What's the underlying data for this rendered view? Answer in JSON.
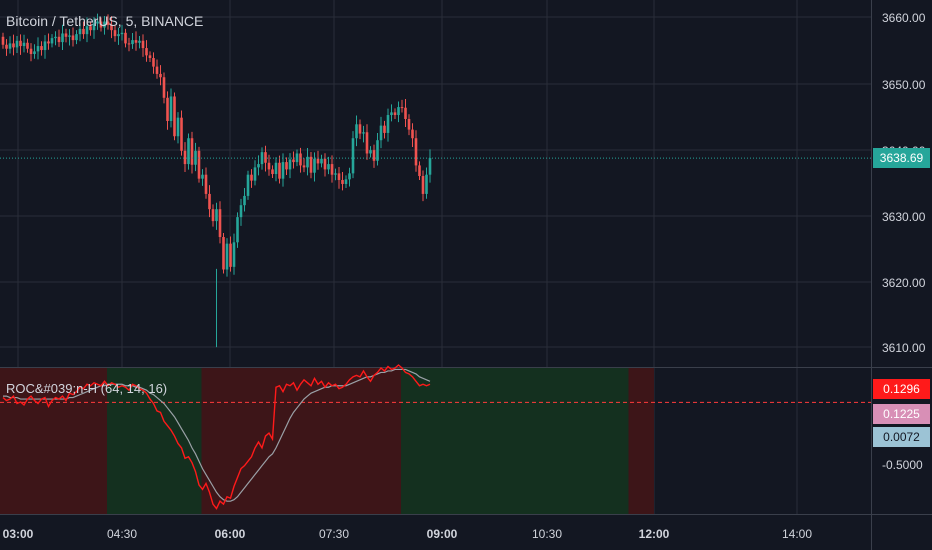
{
  "header": {
    "symbol_title": "Bitcoin / TetherUS, 5, BINANCE"
  },
  "indicator": {
    "title": "ROC&#039;n-H (64, 14, 16)"
  },
  "price_axis": {
    "labels": [
      "3660.00",
      "3650.00",
      "3640.00",
      "3630.00",
      "3620.00",
      "3610.00"
    ],
    "last_price": "3638.69",
    "last_price_color": "#26a69a"
  },
  "indicator_axis": {
    "badges": [
      {
        "text": "0.1296",
        "color": "#ff1a1a"
      },
      {
        "text": "0.1225",
        "color": "#d88fb6"
      },
      {
        "text": "0.0072",
        "color": "#9cc3d5"
      }
    ],
    "labels": [
      "-0.5000"
    ]
  },
  "time_axis": {
    "labels": [
      "03:00",
      "04:30",
      "06:00",
      "07:30",
      "09:00",
      "10:30",
      "12:00",
      "14:00"
    ],
    "bold": [
      true,
      false,
      true,
      false,
      true,
      false,
      true,
      false
    ]
  },
  "colors": {
    "background": "#131722",
    "up": "#26a69a",
    "down": "#ef5350",
    "grid": "#2a2e39"
  },
  "chart_data": {
    "type": "candlestick",
    "symbol": "Bitcoin / TetherUS",
    "interval": "5",
    "exchange": "BINANCE",
    "ylim": [
      3609,
      3662
    ],
    "close": [
      3655.8,
      3655.2,
      3656.0,
      3655.4,
      3656.4,
      3655.6,
      3656.1,
      3655.2,
      3654.4,
      3654.8,
      3655.6,
      3655.0,
      3656.3,
      3656.0,
      3656.8,
      3657.0,
      3656.2,
      3657.5,
      3657.0,
      3657.2,
      3656.5,
      3657.4,
      3658.2,
      3657.4,
      3658.6,
      3658.0,
      3659.0,
      3659.3,
      3658.4,
      3659.3,
      3658.8,
      3658.0,
      3657.1,
      3657.4,
      3657.6,
      3656.0,
      3655.9,
      3656.5,
      3656.1,
      3656.4,
      3655.3,
      3654.2,
      3653.8,
      3652.5,
      3651.4,
      3650.9,
      3647.8,
      3644.3,
      3648.0,
      3642.0,
      3644.8,
      3639.8,
      3637.8,
      3641.7,
      3637.7,
      3639.8,
      3635.6,
      3636.2,
      3633.3,
      3631.0,
      3629.2,
      3631.0,
      3626.8,
      3621.9,
      3625.8,
      3622.3,
      3626.0,
      3629.8,
      3631.6,
      3633.0,
      3636.2,
      3635.3,
      3637.3,
      3637.8,
      3639.6,
      3638.0,
      3637.0,
      3636.3,
      3638.0,
      3635.6,
      3638.1,
      3637.0,
      3638.5,
      3638.1,
      3639.4,
      3637.6,
      3637.3,
      3638.9,
      3636.5,
      3638.6,
      3637.9,
      3638.6,
      3637.0,
      3637.8,
      3636.2,
      3636.4,
      3635.4,
      3634.8,
      3635.5,
      3636.4,
      3641.7,
      3643.8,
      3642.4,
      3642.6,
      3639.4,
      3639.9,
      3638.3,
      3641.4,
      3643.6,
      3642.5,
      3645.2,
      3645.6,
      3645.2,
      3646.4,
      3646.3,
      3644.6,
      3643.0,
      3641.7,
      3637.6,
      3636.0,
      3633.3,
      3636.2,
      3638.7
    ],
    "indicator_ylim": [
      -0.75,
      0.3
    ],
    "roc": [
      0.04,
      0.02,
      0.03,
      0.05,
      0.0,
      0.01,
      -0.01,
      0.03,
      0.05,
      0.02,
      0.0,
      0.03,
      0.04,
      -0.02,
      0.02,
      0.04,
      0.03,
      0.05,
      0.02,
      0.07,
      0.06,
      0.08,
      0.11,
      0.1,
      0.13,
      0.12,
      0.14,
      0.13,
      0.12,
      0.15,
      0.12,
      0.14,
      0.13,
      0.11,
      0.12,
      0.11,
      0.09,
      0.13,
      0.12,
      0.1,
      0.09,
      0.07,
      0.03,
      0.0,
      -0.05,
      -0.06,
      -0.12,
      -0.15,
      -0.18,
      -0.22,
      -0.27,
      -0.3,
      -0.37,
      -0.36,
      -0.4,
      -0.46,
      -0.55,
      -0.58,
      -0.54,
      -0.6,
      -0.68,
      -0.71,
      -0.66,
      -0.68,
      -0.63,
      -0.64,
      -0.56,
      -0.5,
      -0.44,
      -0.42,
      -0.39,
      -0.36,
      -0.3,
      -0.26,
      -0.3,
      -0.22,
      -0.2,
      -0.24,
      0.11,
      0.12,
      0.08,
      0.13,
      0.12,
      0.14,
      0.09,
      0.13,
      0.16,
      0.14,
      0.12,
      0.17,
      0.13,
      0.15,
      0.11,
      0.14,
      0.12,
      0.13,
      0.1,
      0.11,
      0.13,
      0.16,
      0.18,
      0.19,
      0.18,
      0.22,
      0.18,
      0.15,
      0.19,
      0.21,
      0.24,
      0.22,
      0.25,
      0.23,
      0.24,
      0.26,
      0.24,
      0.21,
      0.2,
      0.18,
      0.15,
      0.12,
      0.13,
      0.12,
      0.13
    ],
    "signal": [
      0.05,
      0.05,
      0.04,
      0.04,
      0.04,
      0.03,
      0.03,
      0.03,
      0.03,
      0.03,
      0.03,
      0.03,
      0.03,
      0.03,
      0.03,
      0.03,
      0.03,
      0.03,
      0.03,
      0.04,
      0.04,
      0.05,
      0.06,
      0.07,
      0.08,
      0.09,
      0.1,
      0.11,
      0.12,
      0.12,
      0.13,
      0.13,
      0.13,
      0.13,
      0.13,
      0.12,
      0.12,
      0.12,
      0.11,
      0.11,
      0.1,
      0.09,
      0.07,
      0.06,
      0.04,
      0.02,
      0.0,
      -0.03,
      -0.06,
      -0.09,
      -0.13,
      -0.17,
      -0.21,
      -0.25,
      -0.3,
      -0.34,
      -0.39,
      -0.44,
      -0.48,
      -0.52,
      -0.56,
      -0.6,
      -0.63,
      -0.65,
      -0.66,
      -0.66,
      -0.65,
      -0.63,
      -0.6,
      -0.57,
      -0.54,
      -0.51,
      -0.48,
      -0.45,
      -0.42,
      -0.39,
      -0.36,
      -0.34,
      -0.3,
      -0.25,
      -0.2,
      -0.15,
      -0.1,
      -0.06,
      -0.03,
      0.0,
      0.03,
      0.05,
      0.07,
      0.08,
      0.09,
      0.1,
      0.11,
      0.11,
      0.12,
      0.12,
      0.12,
      0.12,
      0.12,
      0.13,
      0.14,
      0.15,
      0.16,
      0.17,
      0.18,
      0.18,
      0.19,
      0.2,
      0.21,
      0.21,
      0.22,
      0.22,
      0.23,
      0.23,
      0.23,
      0.23,
      0.22,
      0.21,
      0.2,
      0.18,
      0.17,
      0.16,
      0.15
    ],
    "zones": [
      {
        "from": 0,
        "to": 30,
        "color": "down"
      },
      {
        "from": 30,
        "to": 57,
        "color": "up"
      },
      {
        "from": 57,
        "to": 114,
        "color": "down"
      },
      {
        "from": 114,
        "to": 179,
        "color": "up"
      },
      {
        "from": 179,
        "to": 186,
        "color": "down"
      }
    ]
  }
}
